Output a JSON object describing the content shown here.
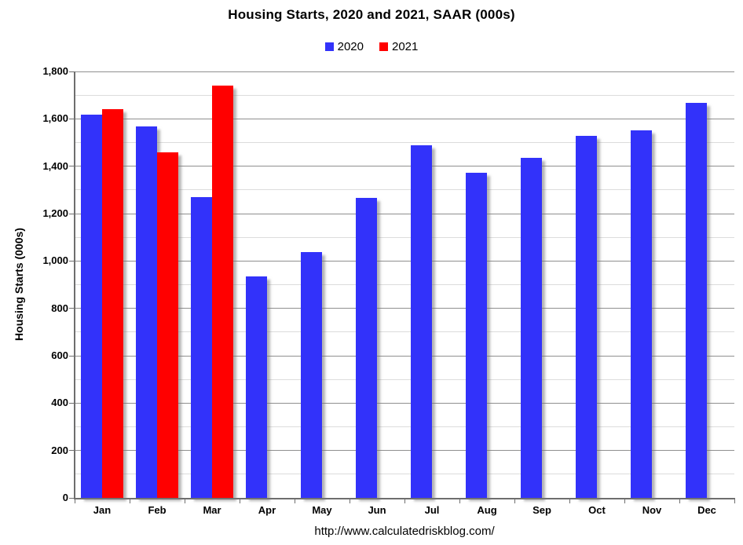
{
  "chart_data": {
    "type": "bar",
    "title": "Housing Starts,  2020 and 2021, SAAR (000s)",
    "ylabel": "Housing Starts (000s)",
    "xlabel": "",
    "categories": [
      "Jan",
      "Feb",
      "Mar",
      "Apr",
      "May",
      "Jun",
      "Jul",
      "Aug",
      "Sep",
      "Oct",
      "Nov",
      "Dec"
    ],
    "series": [
      {
        "name": "2020",
        "color": "#3232fa",
        "values": [
          1617,
          1567,
          1269,
          934,
          1038,
          1265,
          1487,
          1373,
          1437,
          1528,
          1553,
          1667
        ]
      },
      {
        "name": "2021",
        "color": "#ff0000",
        "values": [
          1640,
          1457,
          1739,
          null,
          null,
          null,
          null,
          null,
          null,
          null,
          null,
          null
        ]
      }
    ],
    "ylim": [
      0,
      1800
    ],
    "y_major_step": 200,
    "y_minor_step": 100,
    "y_tick_labels": [
      "0",
      "200",
      "400",
      "600",
      "800",
      "1,000",
      "1,200",
      "1,400",
      "1,600",
      "1,800"
    ],
    "grid": "horizontal, minor every 100 (light), major every 200 (dark)",
    "legend_position": "top center",
    "annotation": "http://www.calculatedriskblog.com/"
  }
}
